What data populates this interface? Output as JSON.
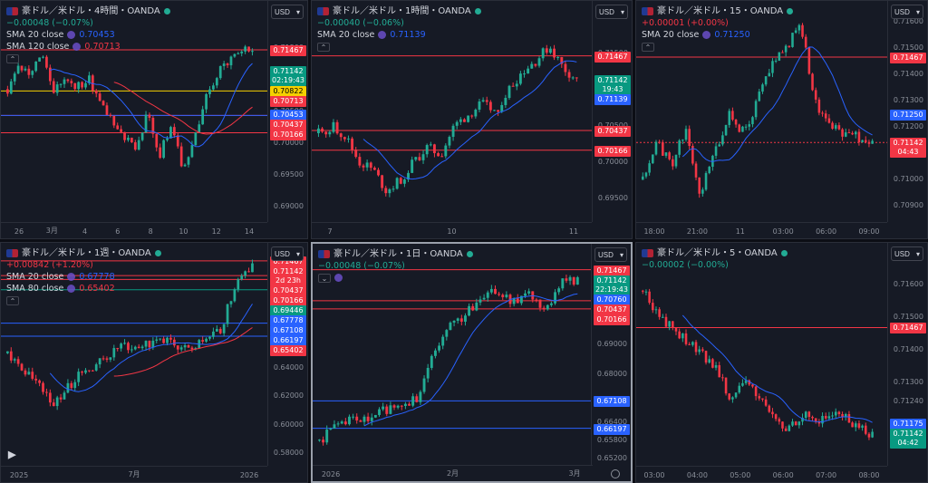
{
  "colors": {
    "up": "#22ab94",
    "down": "#f23645",
    "sma_blue": "#2962ff",
    "sma_red": "#f23645",
    "hline_red": "#f23645",
    "hline_blue": "#2962ff",
    "bg": "#161a25"
  },
  "icons": {
    "symbol": "flag-icon",
    "status": "market-dot-icon",
    "indicator": "eye-icon",
    "collapse": "chevron-up-icon",
    "logo": "tradingview-logo-icon",
    "settings": "gear-icon"
  },
  "currency_label": "USD",
  "panes": [
    {
      "title": "豪ドル／米ドル・4時間・OANDA",
      "change": "−0.00048 (−0.07%)",
      "change_dir": "down_green",
      "indicators": [
        {
          "name": "SMA 20 close",
          "value": "0.70453",
          "color": "#2962ff"
        },
        {
          "name": "SMA 120 close",
          "value": "0.70713",
          "color": "#f23645"
        }
      ],
      "y_ticks": [
        "0.72000",
        "0.71500",
        "0.71000",
        "0.70500",
        "0.70000",
        "0.69500",
        "0.69000"
      ],
      "y_range": [
        0.6885,
        0.7215
      ],
      "price_tags": [
        {
          "text": "0.71467",
          "value": 0.71467,
          "bg": "#f23645"
        },
        {
          "text": "0.71142\n02:19:43",
          "value": 0.71142,
          "bg": "#089981"
        },
        {
          "text": "0.70822",
          "value": 0.70822,
          "bg": "#f5d000",
          "fg": "#000"
        },
        {
          "text": "0.70713",
          "value": 0.70713,
          "bg": "#f23645"
        },
        {
          "text": "0.70453",
          "value": 0.70453,
          "bg": "#2962ff"
        },
        {
          "text": "0.70437",
          "value": 0.70437,
          "bg": "#f23645"
        },
        {
          "text": "0.70166",
          "value": 0.70166,
          "bg": "#f23645"
        }
      ],
      "hlines": [
        {
          "value": 0.71467,
          "color": "#f23645"
        },
        {
          "value": 0.70822,
          "color": "#f5d000"
        },
        {
          "value": 0.70437,
          "color": "#f23645"
        },
        {
          "value": 0.70166,
          "color": "#f23645"
        },
        {
          "value": 0.70437,
          "color": "#2962ff"
        }
      ],
      "x_ticks": [
        "26",
        "3月",
        "4",
        "6",
        "8",
        "10",
        "12",
        "14"
      ],
      "show_logo": false
    },
    {
      "title": "豪ドル／米ドル・1時間・OANDA",
      "change": "−0.00040 (−0.06%)",
      "change_dir": "down_green",
      "indicators": [
        {
          "name": "SMA 20 close",
          "value": "0.71139",
          "color": "#2962ff"
        }
      ],
      "y_ticks": [
        "0.72000",
        "0.71500",
        "0.71000",
        "0.70500",
        "0.70000",
        "0.69500"
      ],
      "y_range": [
        0.6925,
        0.7215
      ],
      "price_tags": [
        {
          "text": "0.71467",
          "value": 0.71467,
          "bg": "#f23645"
        },
        {
          "text": "0.71142\n19:43",
          "value": 0.71142,
          "bg": "#089981"
        },
        {
          "text": "0.71139",
          "value": 0.71139,
          "bg": "#2962ff"
        },
        {
          "text": "0.70437",
          "value": 0.70437,
          "bg": "#f23645"
        },
        {
          "text": "0.70166",
          "value": 0.70166,
          "bg": "#f23645"
        }
      ],
      "hlines": [
        {
          "value": 0.71467,
          "color": "#f23645"
        },
        {
          "value": 0.70437,
          "color": "#f23645"
        },
        {
          "value": 0.70166,
          "color": "#f23645"
        }
      ],
      "x_ticks": [
        "7",
        "10",
        "11"
      ],
      "show_logo": false
    },
    {
      "title": "豪ドル／米ドル・15・OANDA",
      "change": "+0.00001 (+0.00%)",
      "change_dir": "up_red",
      "indicators": [
        {
          "name": "SMA 20 close",
          "value": "0.71250",
          "color": "#2962ff"
        }
      ],
      "y_ticks": [
        "0.71600",
        "0.71500",
        "0.71400",
        "0.71300",
        "0.71200",
        "0.71100",
        "0.71000",
        "0.70900"
      ],
      "y_range": [
        0.7086,
        0.7166
      ],
      "price_tags": [
        {
          "text": "0.71467",
          "value": 0.71467,
          "bg": "#f23645"
        },
        {
          "text": "0.71250",
          "value": 0.7125,
          "bg": "#2962ff"
        },
        {
          "text": "0.71142\n04:43",
          "value": 0.71142,
          "bg": "#f23645"
        }
      ],
      "hlines": [
        {
          "value": 0.71467,
          "color": "#f23645"
        },
        {
          "value": 0.71142,
          "color": "#f23645",
          "dashed": true
        }
      ],
      "x_ticks": [
        "18:00",
        "21:00",
        "11",
        "03:00",
        "06:00",
        "09:00"
      ],
      "show_logo": false
    },
    {
      "title": "豪ドル／米ドル・1週・OANDA",
      "change": "+0.00842 (+1.20%)",
      "change_dir": "up_red",
      "indicators": [
        {
          "name": "SMA 20 close",
          "value": "0.67778",
          "color": "#2962ff"
        },
        {
          "name": "SMA 80 close",
          "value": "0.65402",
          "color": "#f23645"
        }
      ],
      "y_ticks": [
        "0.72000",
        "0.70000",
        "0.68000",
        "0.66000",
        "0.64000",
        "0.62000",
        "0.60000",
        "0.58000"
      ],
      "y_range": [
        0.575,
        0.7235
      ],
      "price_tags": [
        {
          "text": "0.71467",
          "value": 0.71467,
          "bg": "#f23645"
        },
        {
          "text": "0.71142\n2d 23h",
          "value": 0.71142,
          "bg": "#f23645"
        },
        {
          "text": "0.70437",
          "value": 0.70437,
          "bg": "#f23645"
        },
        {
          "text": "0.70166",
          "value": 0.70166,
          "bg": "#f23645"
        },
        {
          "text": "0.69446",
          "value": 0.69446,
          "bg": "#089981"
        },
        {
          "text": "0.67778",
          "value": 0.67778,
          "bg": "#2962ff"
        },
        {
          "text": "0.67108",
          "value": 0.67108,
          "bg": "#2962ff"
        },
        {
          "text": "0.66197",
          "value": 0.66197,
          "bg": "#2962ff"
        },
        {
          "text": "0.65402",
          "value": 0.65402,
          "bg": "#f23645"
        }
      ],
      "hlines": [
        {
          "value": 0.71467,
          "color": "#f23645"
        },
        {
          "value": 0.70437,
          "color": "#f23645"
        },
        {
          "value": 0.70166,
          "color": "#f23645"
        },
        {
          "value": 0.69446,
          "color": "#089981"
        },
        {
          "value": 0.67108,
          "color": "#2962ff"
        },
        {
          "value": 0.66197,
          "color": "#2962ff"
        }
      ],
      "x_ticks": [
        "2025",
        "7月",
        "2026"
      ],
      "show_logo": true
    },
    {
      "title": "豪ドル／米ドル・1日・OANDA",
      "change": "−0.00048 (−0.07%)",
      "change_dir": "down_green",
      "indicators": [],
      "y_ticks": [
        "0.72000",
        "0.71000",
        "0.70000",
        "0.69000",
        "0.68000",
        "0.67000",
        "0.66400",
        "0.65800",
        "0.65200"
      ],
      "y_range": [
        0.651,
        0.7215
      ],
      "price_tags": [
        {
          "text": "0.71467",
          "value": 0.71467,
          "bg": "#f23645"
        },
        {
          "text": "0.71142\n22:19:43",
          "value": 0.71142,
          "bg": "#089981"
        },
        {
          "text": "0.70760",
          "value": 0.7076,
          "bg": "#2962ff"
        },
        {
          "text": "0.70437",
          "value": 0.70437,
          "bg": "#f23645"
        },
        {
          "text": "0.70166",
          "value": 0.70166,
          "bg": "#f23645"
        },
        {
          "text": "0.67108",
          "value": 0.67108,
          "bg": "#2962ff"
        },
        {
          "text": "0.66197",
          "value": 0.66197,
          "bg": "#2962ff"
        }
      ],
      "hlines": [
        {
          "value": 0.71467,
          "color": "#f23645"
        },
        {
          "value": 0.70437,
          "color": "#f23645"
        },
        {
          "value": 0.70166,
          "color": "#f23645"
        },
        {
          "value": 0.67108,
          "color": "#2962ff"
        },
        {
          "value": 0.66197,
          "color": "#2962ff"
        }
      ],
      "x_ticks": [
        "2026",
        "2月",
        "3月"
      ],
      "show_logo": false
    },
    {
      "title": "豪ドル／米ドル・5・OANDA",
      "change": "−0.00002 (−0.00%)",
      "change_dir": "down_green",
      "indicators": [],
      "y_ticks": [
        "0.71600",
        "0.71500",
        "0.71400",
        "0.71300",
        "0.71240"
      ],
      "y_range": [
        0.7106,
        0.7171
      ],
      "price_tags": [
        {
          "text": "0.71467",
          "value": 0.71467,
          "bg": "#f23645"
        },
        {
          "text": "0.71175",
          "value": 0.71175,
          "bg": "#2962ff"
        },
        {
          "text": "0.71142\n04:42",
          "value": 0.71142,
          "bg": "#089981"
        }
      ],
      "hlines": [
        {
          "value": 0.71467,
          "color": "#f23645"
        }
      ],
      "x_ticks": [
        "03:00",
        "04:00",
        "05:00",
        "06:00",
        "07:00",
        "08:00"
      ],
      "show_logo": false
    }
  ],
  "chart_data": [
    {
      "type": "candlestick",
      "title": "豪ドル／米ドル・4時間・OANDA",
      "series": [
        {
          "name": "SMA 20 close",
          "last": 0.70453
        },
        {
          "name": "SMA 120 close",
          "last": 0.70713
        }
      ],
      "close_path": [
        0.7085,
        0.712,
        0.711,
        0.714,
        0.708,
        0.7105,
        0.709,
        0.71,
        0.706,
        0.704,
        0.701,
        0.6985,
        0.705,
        0.698,
        0.703,
        0.696,
        0.7,
        0.707,
        0.711,
        0.713,
        0.715,
        0.7142
      ]
    },
    {
      "type": "candlestick",
      "title": "豪ドル／米ドル・1時間・OANDA",
      "series": [
        {
          "name": "SMA 20 close",
          "last": 0.71139
        }
      ],
      "close_path": [
        0.704,
        0.705,
        0.7035,
        0.7,
        0.699,
        0.696,
        0.6975,
        0.7,
        0.702,
        0.701,
        0.705,
        0.7065,
        0.708,
        0.707,
        0.71,
        0.7125,
        0.714,
        0.716,
        0.713,
        0.7114
      ]
    },
    {
      "type": "candlestick",
      "title": "豪ドル／米ドル・15・OANDA",
      "series": [
        {
          "name": "SMA 20 close",
          "last": 0.7125
        }
      ],
      "close_path": [
        0.71,
        0.7115,
        0.7105,
        0.712,
        0.7095,
        0.711,
        0.7125,
        0.7118,
        0.713,
        0.7145,
        0.715,
        0.716,
        0.713,
        0.712,
        0.7118,
        0.7116,
        0.7114
      ]
    },
    {
      "type": "candlestick",
      "title": "豪ドル／米ドル・1週・OANDA",
      "series": [
        {
          "name": "SMA 20 close",
          "last": 0.67778
        },
        {
          "name": "SMA 80 close",
          "last": 0.65402
        }
      ],
      "close_path": [
        0.65,
        0.638,
        0.625,
        0.615,
        0.63,
        0.64,
        0.645,
        0.655,
        0.652,
        0.66,
        0.658,
        0.652,
        0.66,
        0.665,
        0.7,
        0.7114
      ]
    },
    {
      "type": "candlestick",
      "title": "豪ドル／米ドル・1日・OANDA",
      "close_path": [
        0.658,
        0.662,
        0.665,
        0.664,
        0.668,
        0.67,
        0.672,
        0.685,
        0.695,
        0.7,
        0.705,
        0.708,
        0.704,
        0.706,
        0.702,
        0.71,
        0.7114
      ]
    },
    {
      "type": "candlestick",
      "title": "豪ドル／米ドル・5・OANDA",
      "close_path": [
        0.7158,
        0.715,
        0.7145,
        0.714,
        0.7135,
        0.7125,
        0.713,
        0.7122,
        0.7115,
        0.712,
        0.7118,
        0.7121,
        0.7117,
        0.7114
      ]
    }
  ]
}
